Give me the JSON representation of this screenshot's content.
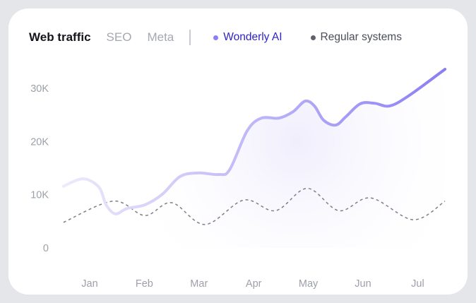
{
  "tabs": [
    {
      "label": "Web traffic",
      "active": true
    },
    {
      "label": "SEO",
      "active": false
    },
    {
      "label": "Meta",
      "active": false
    }
  ],
  "chart_data": {
    "type": "line",
    "x_unit": "month (1 = Jan)",
    "categories": [
      "Jan",
      "Feb",
      "Mar",
      "Apr",
      "May",
      "Jun",
      "Jul"
    ],
    "y_ticks": [
      "0",
      "10K",
      "20K",
      "30K"
    ],
    "ylim": [
      0,
      30000
    ],
    "grid": false,
    "legend_position": "top",
    "series": [
      {
        "name": "Wonderly AI",
        "color": "#8b7ff5",
        "text_color": "#2f22c9",
        "style": "solid",
        "x": [
          0.52,
          0.88,
          1.17,
          1.3,
          1.47,
          1.68,
          2.01,
          2.33,
          2.65,
          2.98,
          3.36,
          3.56,
          3.88,
          4.14,
          4.46,
          4.72,
          4.94,
          5.11,
          5.28,
          5.5,
          5.69,
          5.95,
          6.21,
          6.49,
          6.85,
          7.5
        ],
        "y": [
          11600,
          13000,
          11400,
          8100,
          6400,
          7400,
          8100,
          10100,
          13400,
          14100,
          13800,
          14700,
          22000,
          24400,
          24400,
          25600,
          27600,
          26700,
          24000,
          23100,
          24700,
          27100,
          27200,
          26700,
          28700,
          33600
        ]
      },
      {
        "name": "Regular systems",
        "color": "#6b6e78",
        "text_color": "#4b4e58",
        "style": "dashed",
        "x": [
          0.52,
          1.43,
          2.01,
          2.5,
          3.11,
          3.82,
          4.4,
          4.98,
          5.56,
          6.14,
          6.92,
          7.5
        ],
        "y": [
          4800,
          8800,
          6100,
          8500,
          4400,
          9000,
          7000,
          11200,
          7000,
          9400,
          5300,
          8800
        ]
      }
    ]
  }
}
